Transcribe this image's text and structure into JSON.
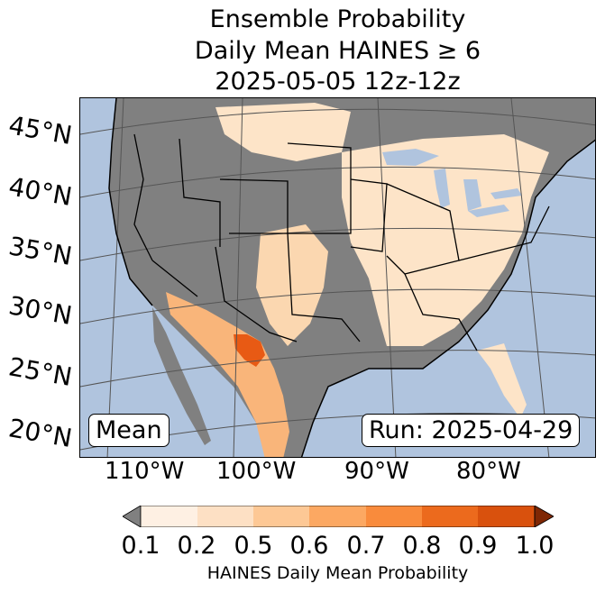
{
  "title": {
    "line1": "Ensemble Probability",
    "line2": "Daily Mean HAINES ≥ 6",
    "line3": "2025-05-05 12z-12z"
  },
  "map": {
    "lat_labels": [
      "45°N",
      "40°N",
      "35°N",
      "30°N",
      "25°N",
      "20°N"
    ],
    "lon_labels": [
      "110°W",
      "100°W",
      "90°W",
      "80°W"
    ],
    "mean_label": "Mean",
    "run_label": "Run: 2025-04-29",
    "colors": {
      "ocean": "#b0c4de",
      "no_data_land": "#808080",
      "low_prob": "#fde4c8",
      "high_prob": "#e85a14"
    }
  },
  "colorbar": {
    "ticks": [
      "0.1",
      "0.2",
      "0.5",
      "0.6",
      "0.7",
      "0.8",
      "0.9",
      "1.0"
    ],
    "colors": [
      "#fef0e3",
      "#fde0c4",
      "#fdc895",
      "#fca862",
      "#f98b3c",
      "#ec6a1d",
      "#d9510d",
      "#a83a03"
    ],
    "under_color": "#808080",
    "over_color": "#7f2704",
    "label": "HAINES Daily Mean Probability"
  }
}
